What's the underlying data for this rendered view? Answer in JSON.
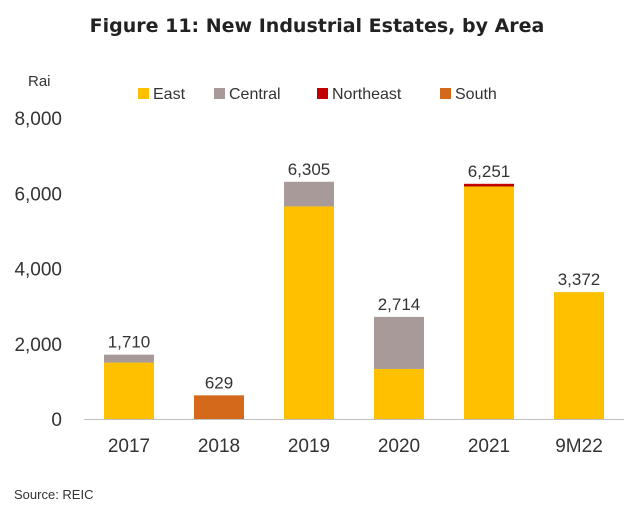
{
  "chart_data": {
    "type": "bar",
    "stacked": true,
    "title": "Figure 11: New Industrial Estates, by Area",
    "ylabel": "Rai",
    "source": "Source: REIC",
    "ylim": [
      0,
      8000
    ],
    "yticks": [
      "0",
      "2,000",
      "4,000",
      "6,000",
      "8,000"
    ],
    "ytick_values": [
      0,
      2000,
      4000,
      6000,
      8000
    ],
    "categories": [
      "2017",
      "2018",
      "2019",
      "2020",
      "2021",
      "9M22"
    ],
    "series": [
      {
        "name": "East",
        "color": "#FFC000",
        "values": [
          1500,
          0,
          5650,
          1330,
          6180,
          3372
        ]
      },
      {
        "name": "Central",
        "color": "#A79A99",
        "values": [
          210,
          0,
          655,
          1384,
          0,
          0
        ]
      },
      {
        "name": "Northeast",
        "color": "#C00000",
        "values": [
          0,
          0,
          0,
          0,
          71,
          0
        ]
      },
      {
        "name": "South",
        "color": "#D4691C",
        "values": [
          0,
          629,
          0,
          0,
          0,
          0
        ]
      }
    ],
    "totals": [
      "1,710",
      "629",
      "6,305",
      "2,714",
      "6,251",
      "3,372"
    ],
    "legend_position": "top",
    "grid": false
  }
}
